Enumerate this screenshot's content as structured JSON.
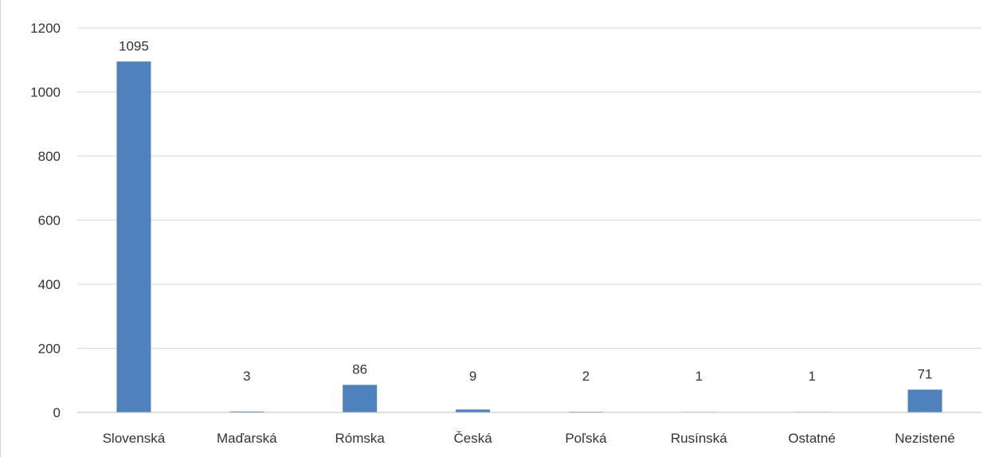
{
  "chart_data": {
    "type": "bar",
    "categories": [
      "Slovenská",
      "Maďarská",
      "Rómska",
      "Česká",
      "Poľská",
      "Rusínská",
      "Ostatné",
      "Nezistené"
    ],
    "values": [
      1095,
      3,
      86,
      9,
      2,
      1,
      1,
      71
    ],
    "data_labels": [
      "1095",
      "3",
      "86",
      "9",
      "2",
      "1",
      "1",
      "71"
    ],
    "yticks": [
      "0",
      "200",
      "400",
      "600",
      "800",
      "1000",
      "1200"
    ],
    "ylim": [
      0,
      1200
    ],
    "grid": true,
    "legend": "none",
    "bar_color": "#4f81bd"
  }
}
